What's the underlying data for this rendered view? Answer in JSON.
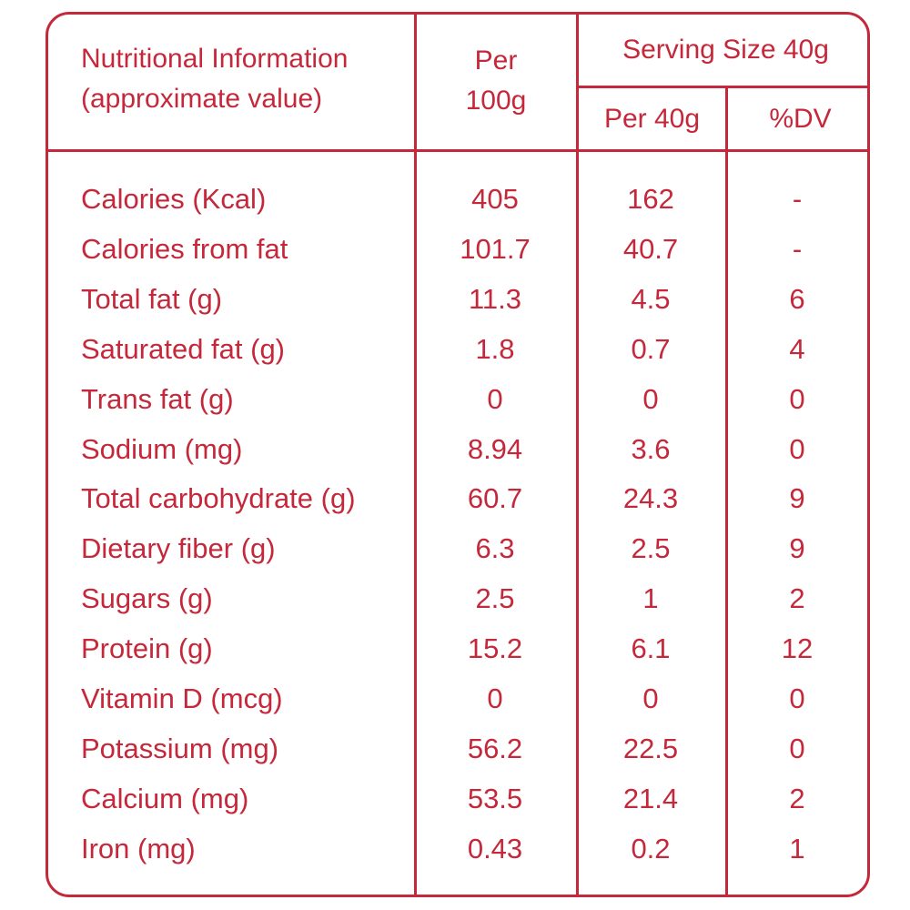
{
  "header": {
    "col1_line1": "Nutritional Information",
    "col1_line2": "(approximate value)",
    "col2_line1": "Per",
    "col2_line2": "100g",
    "serving_size": "Serving Size 40g",
    "per40": "Per 40g",
    "dv": "%DV"
  },
  "rows": [
    {
      "name": "Calories (Kcal)",
      "per100": "405",
      "per40": "162",
      "dv": "-"
    },
    {
      "name": "Calories from fat",
      "per100": "101.7",
      "per40": "40.7",
      "dv": "-"
    },
    {
      "name": "Total fat (g)",
      "per100": "11.3",
      "per40": "4.5",
      "dv": "6"
    },
    {
      "name": "Saturated fat (g)",
      "per100": "1.8",
      "per40": "0.7",
      "dv": "4"
    },
    {
      "name": "Trans fat (g)",
      "per100": "0",
      "per40": "0",
      "dv": "0"
    },
    {
      "name": "Sodium (mg)",
      "per100": "8.94",
      "per40": "3.6",
      "dv": "0"
    },
    {
      "name": "Total carbohydrate (g)",
      "per100": "60.7",
      "per40": "24.3",
      "dv": "9"
    },
    {
      "name": "Dietary fiber (g)",
      "per100": "6.3",
      "per40": "2.5",
      "dv": "9"
    },
    {
      "name": "Sugars (g)",
      "per100": "2.5",
      "per40": "1",
      "dv": "2"
    },
    {
      "name": "Protein (g)",
      "per100": "15.2",
      "per40": "6.1",
      "dv": "12"
    },
    {
      "name": "Vitamin D (mcg)",
      "per100": "0",
      "per40": "0",
      "dv": "0"
    },
    {
      "name": "Potassium (mg)",
      "per100": "56.2",
      "per40": "22.5",
      "dv": "0"
    },
    {
      "name": "Calcium (mg)",
      "per100": "53.5",
      "per40": "21.4",
      "dv": "2"
    },
    {
      "name": "Iron (mg)",
      "per100": "0.43",
      "per40": "0.2",
      "dv": "1"
    }
  ],
  "colors": {
    "ink": "#c4283a",
    "background": "#ffffff"
  }
}
